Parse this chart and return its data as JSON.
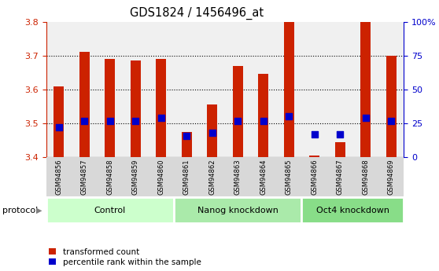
{
  "title": "GDS1824 / 1456496_at",
  "samples": [
    "GSM94856",
    "GSM94857",
    "GSM94858",
    "GSM94859",
    "GSM94860",
    "GSM94861",
    "GSM94862",
    "GSM94863",
    "GSM94864",
    "GSM94865",
    "GSM94866",
    "GSM94867",
    "GSM94868",
    "GSM94869"
  ],
  "transformed_count": [
    3.61,
    3.71,
    3.69,
    3.685,
    3.69,
    3.475,
    3.555,
    3.67,
    3.645,
    3.8,
    3.405,
    3.445,
    3.8,
    3.7
  ],
  "percentile_rank": [
    22,
    27,
    27,
    27,
    29,
    16,
    18,
    27,
    27,
    30,
    17,
    17,
    29,
    27
  ],
  "ylim_left": [
    3.4,
    3.8
  ],
  "ylim_right": [
    0,
    100
  ],
  "yticks_left": [
    3.4,
    3.5,
    3.6,
    3.7,
    3.8
  ],
  "yticks_right": [
    0,
    25,
    50,
    75,
    100
  ],
  "ytick_right_labels": [
    "0",
    "25",
    "50",
    "75",
    "100%"
  ],
  "groups": [
    {
      "label": "Control",
      "start": 0,
      "end": 5,
      "color": "#ccffcc"
    },
    {
      "label": "Nanog knockdown",
      "start": 5,
      "end": 10,
      "color": "#aaeaaa"
    },
    {
      "label": "Oct4 knockdown",
      "start": 10,
      "end": 14,
      "color": "#88dd88"
    }
  ],
  "bar_color": "#cc2200",
  "dot_color": "#0000cc",
  "bar_width": 0.4,
  "dot_size": 30,
  "background_plot": "#f0f0f0",
  "background_xrow": "#d8d8d8",
  "left_axis_color": "#cc2200",
  "right_axis_color": "#0000cc"
}
